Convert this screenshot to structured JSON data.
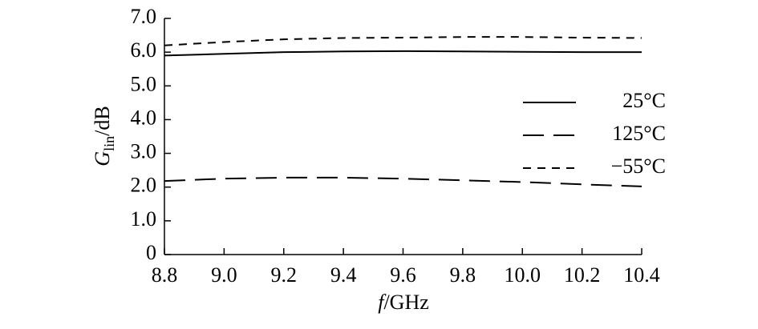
{
  "chart_data": {
    "type": "line",
    "xlabel": {
      "symbol": "f",
      "unit": "/GHz"
    },
    "ylabel": {
      "symbol": "G",
      "subscript": "lin",
      "unit": "/dB"
    },
    "x": [
      8.8,
      9.0,
      9.2,
      9.4,
      9.6,
      9.8,
      10.0,
      10.2,
      10.4
    ],
    "series": [
      {
        "name": "25°C",
        "color": "#000000",
        "dash": "solid",
        "values": [
          5.9,
          5.95,
          6.0,
          6.02,
          6.03,
          6.02,
          6.01,
          6.0,
          6.0
        ]
      },
      {
        "name": "125°C",
        "color": "#000000",
        "dash": "long",
        "values": [
          2.18,
          2.25,
          2.28,
          2.28,
          2.25,
          2.2,
          2.15,
          2.08,
          2.02
        ]
      },
      {
        "name": "−55°C",
        "color": "#000000",
        "dash": "short",
        "values": [
          6.2,
          6.3,
          6.38,
          6.42,
          6.43,
          6.45,
          6.45,
          6.43,
          6.42
        ]
      }
    ],
    "xlim": [
      8.8,
      10.4
    ],
    "xticks": [
      8.8,
      {
        "value": 9,
        "label": "9.0"
      },
      9.2,
      9.4,
      9.6,
      9.8,
      {
        "value": 10,
        "label": "10.0"
      },
      10.2,
      10.4
    ],
    "ylim": [
      0,
      7
    ],
    "yticks": [
      0,
      {
        "value": 1,
        "label": "1.0"
      },
      {
        "value": 2,
        "label": "2.0"
      },
      {
        "value": 3,
        "label": "3.0"
      },
      {
        "value": 4,
        "label": "4.0"
      },
      {
        "value": 5,
        "label": "5.0"
      },
      {
        "value": 6,
        "label": "6.0"
      },
      {
        "value": 7,
        "label": "7.0"
      }
    ],
    "legend": "right"
  }
}
